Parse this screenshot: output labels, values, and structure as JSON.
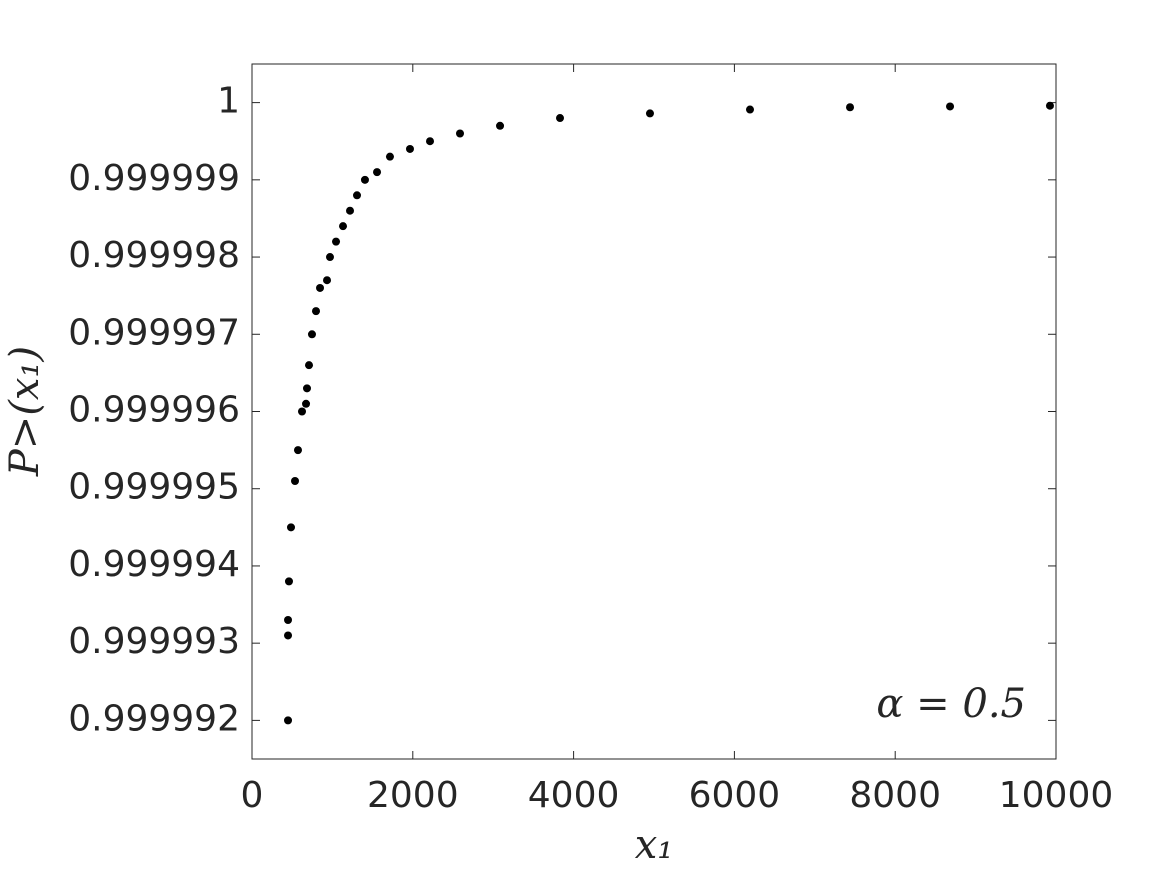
{
  "chart_data": {
    "type": "scatter",
    "x_label": "x₁",
    "y_label": "P>(x₁)",
    "annotation": "α = 0.5",
    "color": "#000000",
    "x": [
      448,
      448,
      448,
      460,
      485,
      535,
      572,
      622,
      672,
      684,
      709,
      746,
      796,
      846,
      933,
      970,
      1045,
      1132,
      1219,
      1306,
      1405,
      1555,
      1716,
      1965,
      2214,
      2587,
      3085,
      3831,
      4950,
      6194,
      7438,
      8682,
      9925
    ],
    "values": [
      0.999992,
      0.9999931,
      0.9999933,
      0.9999938,
      0.9999945,
      0.9999951,
      0.9999955,
      0.999996,
      0.9999961,
      0.9999963,
      0.9999966,
      0.999997,
      0.9999973,
      0.9999976,
      0.9999977,
      0.999998,
      0.9999982,
      0.9999984,
      0.9999986,
      0.9999988,
      0.999999,
      0.9999991,
      0.9999993,
      0.9999994,
      0.9999995,
      0.9999996,
      0.9999997,
      0.9999998,
      0.99999986,
      0.99999991,
      0.99999994,
      0.99999995,
      0.99999996
    ],
    "xlim": [
      0,
      10000
    ],
    "xticks": [
      0,
      2000,
      4000,
      6000,
      8000,
      10000
    ],
    "ylim": [
      0.9999915,
      1.0000005
    ],
    "yticks": [
      0.999992,
      0.999993,
      0.999994,
      0.999995,
      0.999996,
      0.999997,
      0.999998,
      0.999999,
      1
    ]
  }
}
